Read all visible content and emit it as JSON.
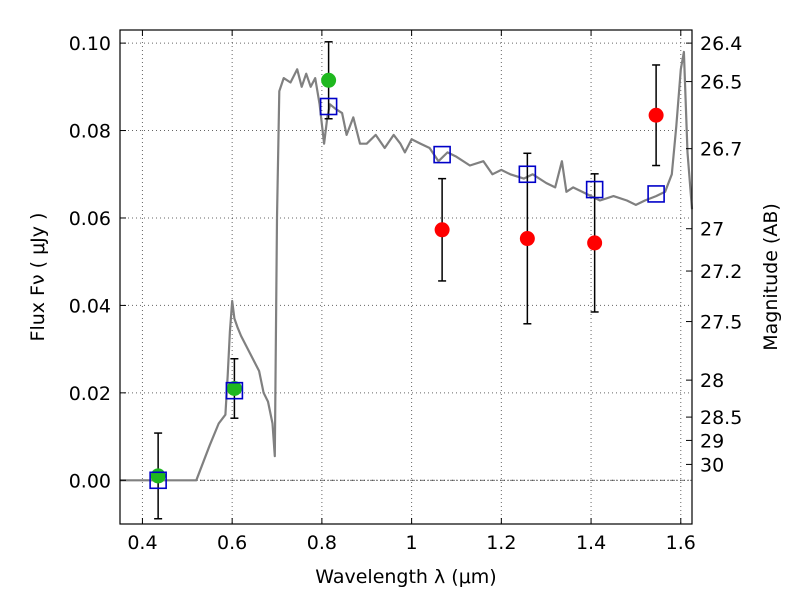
{
  "chart_data": {
    "type": "scatter",
    "title": "",
    "xlabel": "Wavelength  λ (μm)",
    "ylabel": "Flux  Fν  ( μJy )",
    "y2label": "Magnitude (AB)",
    "xlim": [
      0.35,
      1.625
    ],
    "ylim": [
      -0.01,
      0.103
    ],
    "grid": true,
    "legend": "none",
    "x_ticks": [
      {
        "value": 0.4,
        "label": "0.4"
      },
      {
        "value": 0.6,
        "label": "0.6"
      },
      {
        "value": 0.8,
        "label": "0.8"
      },
      {
        "value": 1.0,
        "label": "1"
      },
      {
        "value": 1.2,
        "label": "1.2"
      },
      {
        "value": 1.4,
        "label": "1.4"
      },
      {
        "value": 1.6,
        "label": "1.6"
      }
    ],
    "y_ticks": [
      {
        "value": 0.0,
        "label": "0.00"
      },
      {
        "value": 0.02,
        "label": "0.02"
      },
      {
        "value": 0.04,
        "label": "0.04"
      },
      {
        "value": 0.06,
        "label": "0.06"
      },
      {
        "value": 0.08,
        "label": "0.08"
      },
      {
        "value": 0.1,
        "label": "0.10"
      }
    ],
    "mag_ticks": [
      {
        "value": 26.4,
        "label": "26.4"
      },
      {
        "value": 26.5,
        "label": "26.5"
      },
      {
        "value": 26.7,
        "label": "26.7"
      },
      {
        "value": 27.0,
        "label": "27"
      },
      {
        "value": 27.2,
        "label": "27.2"
      },
      {
        "value": 27.5,
        "label": "27.5"
      },
      {
        "value": 28.0,
        "label": "28"
      },
      {
        "value": 28.5,
        "label": "28.5"
      },
      {
        "value": 29.0,
        "label": "29"
      },
      {
        "value": 30.0,
        "label": "30"
      }
    ],
    "series": [
      {
        "kind": "line",
        "color": "#808080",
        "x": [
          0.35,
          0.52,
          0.55,
          0.57,
          0.585,
          0.59,
          0.595,
          0.6,
          0.605,
          0.612,
          0.62,
          0.63,
          0.64,
          0.65,
          0.66,
          0.67,
          0.68,
          0.69,
          0.695,
          0.7,
          0.705,
          0.715,
          0.73,
          0.745,
          0.755,
          0.765,
          0.775,
          0.785,
          0.795,
          0.805,
          0.812,
          0.818,
          0.83,
          0.845,
          0.855,
          0.87,
          0.885,
          0.9,
          0.92,
          0.94,
          0.96,
          0.975,
          0.985,
          1.0,
          1.02,
          1.04,
          1.06,
          1.08,
          1.1,
          1.13,
          1.16,
          1.18,
          1.2,
          1.22,
          1.25,
          1.27,
          1.3,
          1.32,
          1.335,
          1.345,
          1.36,
          1.38,
          1.4,
          1.42,
          1.45,
          1.48,
          1.5,
          1.52,
          1.545,
          1.565,
          1.58,
          1.59,
          1.6,
          1.607,
          1.615,
          1.625
        ],
        "y": [
          0.0,
          0.0,
          0.008,
          0.013,
          0.015,
          0.024,
          0.034,
          0.041,
          0.037,
          0.035,
          0.033,
          0.031,
          0.029,
          0.027,
          0.025,
          0.02,
          0.018,
          0.013,
          0.0055,
          0.06,
          0.089,
          0.092,
          0.091,
          0.094,
          0.09,
          0.093,
          0.09,
          0.092,
          0.086,
          0.077,
          0.083,
          0.086,
          0.085,
          0.084,
          0.079,
          0.083,
          0.077,
          0.077,
          0.079,
          0.076,
          0.079,
          0.077,
          0.075,
          0.078,
          0.077,
          0.076,
          0.073,
          0.075,
          0.074,
          0.072,
          0.073,
          0.07,
          0.071,
          0.07,
          0.069,
          0.07,
          0.068,
          0.067,
          0.073,
          0.066,
          0.067,
          0.066,
          0.065,
          0.064,
          0.065,
          0.064,
          0.063,
          0.064,
          0.065,
          0.066,
          0.07,
          0.081,
          0.094,
          0.098,
          0.075,
          0.062
        ]
      },
      {
        "kind": "points",
        "marker": "circle",
        "color": "#1fb81f",
        "x": [
          0.435,
          0.605,
          0.815
        ],
        "y": [
          0.001,
          0.021,
          0.0915
        ],
        "yerr": [
          0.0098,
          0.0068,
          0.0088
        ]
      },
      {
        "kind": "points",
        "marker": "circle",
        "color": "#ff0000",
        "x": [
          1.068,
          1.258,
          1.408,
          1.545
        ],
        "y": [
          0.0573,
          0.0553,
          0.0543,
          0.0835
        ],
        "yerr": [
          0.0117,
          0.0195,
          0.0158,
          0.0115
        ]
      },
      {
        "kind": "points",
        "marker": "open-square",
        "color": "#0000c8",
        "x": [
          0.435,
          0.605,
          0.815,
          1.068,
          1.258,
          1.408,
          1.545
        ],
        "y": [
          0.0,
          0.0205,
          0.0855,
          0.0745,
          0.07,
          0.0665,
          0.0655
        ]
      }
    ]
  }
}
